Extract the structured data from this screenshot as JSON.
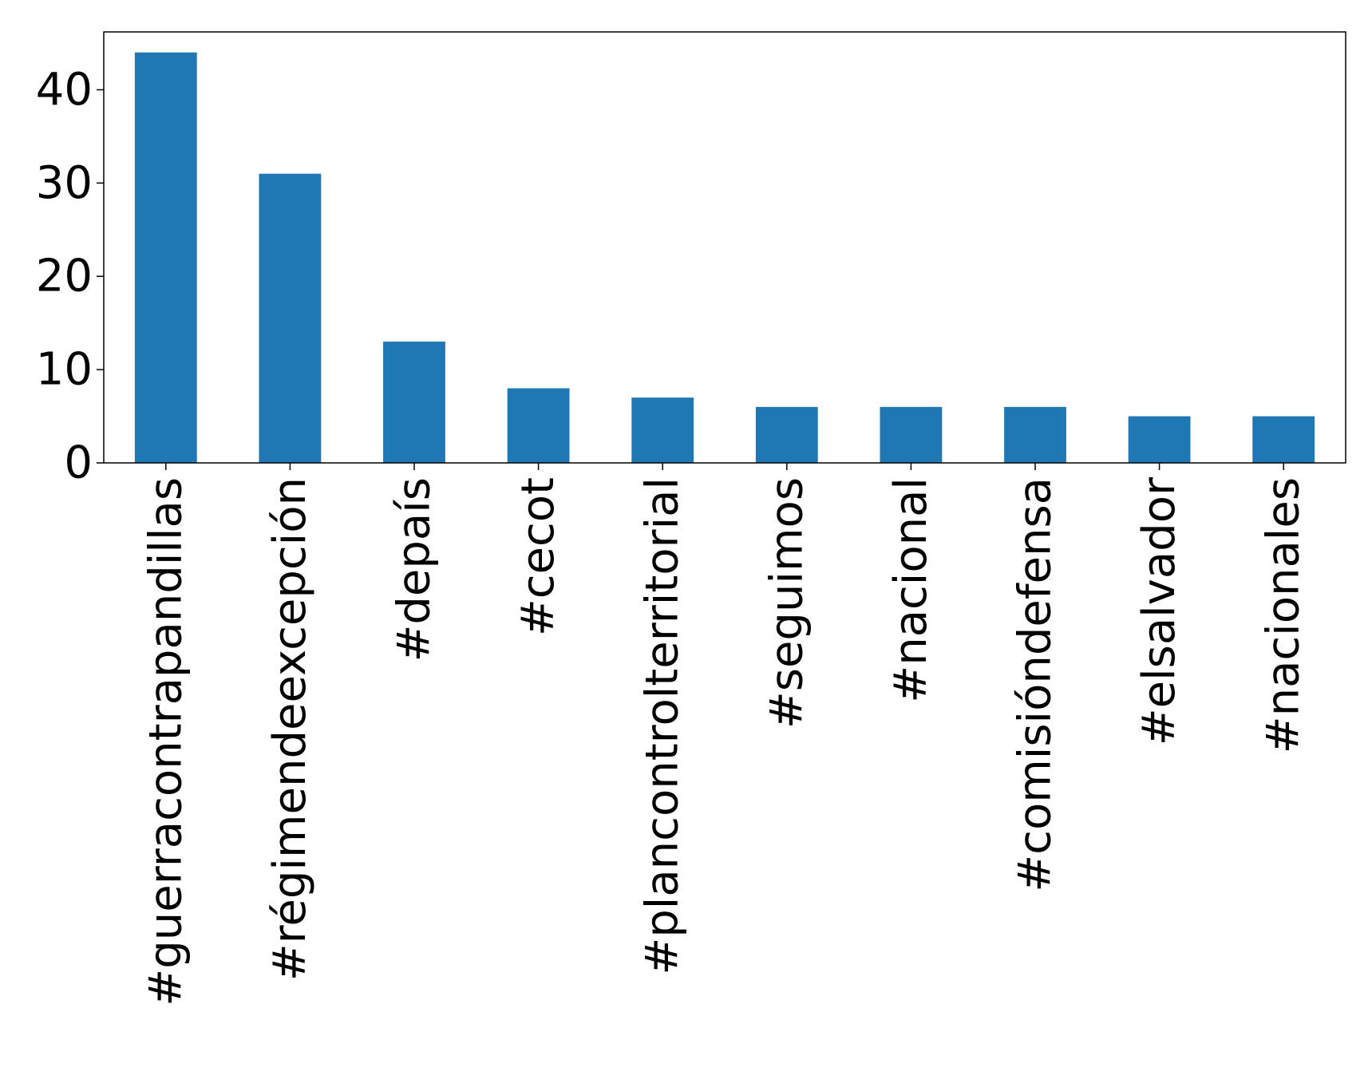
{
  "chart_data": {
    "type": "bar",
    "categories": [
      "#guerracontrapandillas",
      "#régimendeexcepción",
      "#depaís",
      "#cecot",
      "#plancontrolterritorial",
      "#seguimos",
      "#nacional",
      "#comisióndefensa",
      "#elsalvador",
      "#nacionales"
    ],
    "values": [
      44,
      31,
      13,
      8,
      7,
      6,
      6,
      6,
      5,
      5
    ],
    "title": "",
    "xlabel": "",
    "ylabel": "",
    "ylim": [
      0,
      46.2
    ],
    "yticks": [
      0,
      10,
      20,
      30,
      40
    ],
    "grid": false,
    "legend": "none",
    "bar_color": "#1f77b4"
  }
}
